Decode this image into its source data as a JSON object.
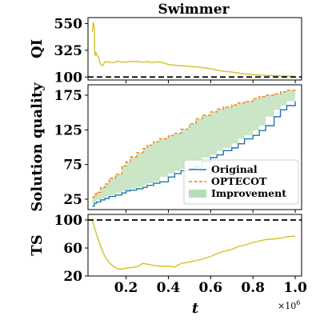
{
  "chart_data": {
    "type": "line",
    "title": "Swimmer",
    "x_label": "t",
    "x_exponent_label": "×10",
    "x_exponent_power": "6",
    "xlim": [
      0.02,
      1.03
    ],
    "x_ticks": [
      0.2,
      0.4,
      0.6,
      0.8,
      1.0
    ],
    "x_tick_labels": [
      "0.2",
      "0.4",
      "0.6",
      "0.8",
      "1.0"
    ],
    "panels": [
      {
        "ylabel": "QI",
        "ylim": [
          75,
          600
        ],
        "y_ticks": [
          100,
          325,
          550
        ],
        "y_tick_labels": [
          "100",
          "325",
          "550"
        ],
        "reference_line": 100,
        "series": [
          {
            "color": "#d4c12a",
            "x": [
              0.04,
              0.045,
              0.05,
              0.052,
              0.055,
              0.058,
              0.06,
              0.065,
              0.07,
              0.075,
              0.08,
              0.09,
              0.1,
              0.12,
              0.14,
              0.16,
              0.18,
              0.2,
              0.22,
              0.25,
              0.28,
              0.3,
              0.32,
              0.35,
              0.38,
              0.4,
              0.43,
              0.46,
              0.5,
              0.55,
              0.6,
              0.65,
              0.7,
              0.75,
              0.8,
              0.85,
              0.9,
              0.95,
              1.0
            ],
            "y": [
              480,
              560,
              520,
              300,
              285,
              310,
              290,
              280,
              270,
              230,
              205,
              195,
              230,
              225,
              220,
              235,
              225,
              228,
              230,
              232,
              225,
              230,
              222,
              228,
              218,
              205,
              200,
              195,
              190,
              182,
              170,
              150,
              142,
              128,
              120,
              115,
              112,
              108,
              106
            ]
          }
        ]
      },
      {
        "ylabel": "Solution quality",
        "ylim": [
          10,
          190
        ],
        "y_ticks": [
          25,
          75,
          125,
          175
        ],
        "y_tick_labels": [
          "25",
          "75",
          "125",
          "175"
        ],
        "legend_position": "lower-right",
        "series": [
          {
            "name": "Original",
            "color": "#1f77b4",
            "style": "solid",
            "x": [
              0.04,
              0.05,
              0.06,
              0.08,
              0.1,
              0.12,
              0.15,
              0.18,
              0.2,
              0.22,
              0.25,
              0.28,
              0.3,
              0.33,
              0.36,
              0.4,
              0.43,
              0.46,
              0.5,
              0.53,
              0.56,
              0.6,
              0.63,
              0.66,
              0.7,
              0.73,
              0.76,
              0.8,
              0.83,
              0.86,
              0.9,
              0.93,
              0.96,
              1.0
            ],
            "y": [
              15,
              19,
              21,
              24,
              26,
              29,
              31,
              34,
              37,
              38,
              40,
              42,
              45,
              48,
              50,
              57,
              62,
              66,
              69,
              72,
              79,
              85,
              89,
              95,
              99,
              105,
              112,
              117,
              124,
              131,
              144,
              154,
              160,
              166
            ]
          },
          {
            "name": "OPTECOT",
            "color": "#ff7f0e",
            "style": "dashed",
            "x": [
              0.04,
              0.05,
              0.06,
              0.08,
              0.1,
              0.12,
              0.15,
              0.18,
              0.2,
              0.22,
              0.25,
              0.28,
              0.3,
              0.33,
              0.36,
              0.4,
              0.43,
              0.46,
              0.5,
              0.53,
              0.56,
              0.6,
              0.63,
              0.66,
              0.7,
              0.73,
              0.76,
              0.8,
              0.83,
              0.86,
              0.9,
              0.93,
              0.96,
              1.0
            ],
            "y": [
              28,
              32,
              35,
              42,
              47,
              55,
              61,
              73,
              79,
              86,
              92,
              98,
              103,
              108,
              112,
              117,
              120,
              126,
              134,
              141,
              146,
              151,
              155,
              158,
              161,
              164,
              166,
              170,
              173,
              175,
              177,
              180,
              182,
              184
            ]
          },
          {
            "name": "Improvement",
            "color": "#a8d5a2",
            "style": "fill-between"
          }
        ]
      },
      {
        "ylabel": "TS",
        "ylim": [
          20,
          108
        ],
        "y_ticks": [
          20,
          60,
          100
        ],
        "y_tick_labels": [
          "20",
          "60",
          "100"
        ],
        "reference_line": 100,
        "series": [
          {
            "color": "#d4c12a",
            "x": [
              0.04,
              0.06,
              0.08,
              0.1,
              0.12,
              0.14,
              0.16,
              0.18,
              0.2,
              0.22,
              0.25,
              0.28,
              0.3,
              0.33,
              0.36,
              0.4,
              0.43,
              0.46,
              0.5,
              0.53,
              0.56,
              0.6,
              0.63,
              0.66,
              0.7,
              0.73,
              0.76,
              0.8,
              0.83,
              0.86,
              0.9,
              0.93,
              0.96,
              1.0
            ],
            "y": [
              100,
              80,
              62,
              48,
              39,
              34,
              30,
              30,
              31,
              32,
              33,
              38,
              37,
              35,
              34,
              34,
              33,
              38,
              40,
              42,
              44,
              48,
              52,
              55,
              58,
              62,
              64,
              68,
              70,
              72,
              73,
              74,
              76,
              77
            ]
          }
        ]
      }
    ]
  }
}
